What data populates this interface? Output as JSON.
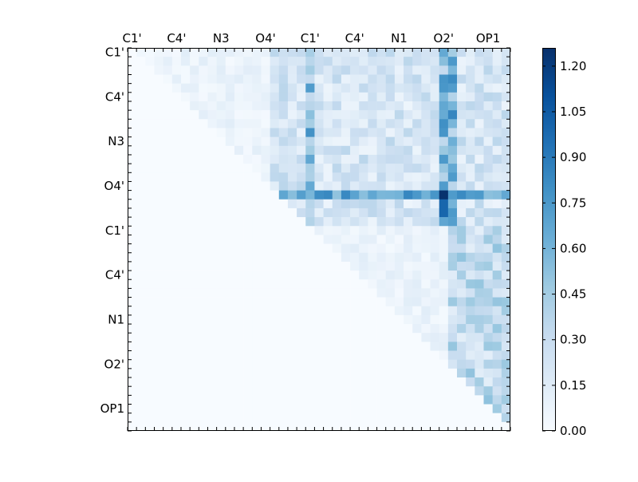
{
  "chart_data": {
    "type": "heatmap",
    "title": "",
    "xlabel": "",
    "ylabel": "",
    "x_tick_labels": [
      "C1'",
      "C4'",
      "N3",
      "O4'",
      "C1'",
      "C4'",
      "N1",
      "O2'",
      "OP1"
    ],
    "y_tick_labels": [
      "C1'",
      "C4'",
      "N3",
      "O4'",
      "C1'",
      "C4'",
      "N1",
      "O2'",
      "OP1"
    ],
    "size": 43,
    "tick_every": 5,
    "x_ticks_position": "top",
    "colormap": "Blues",
    "colors": {
      "low": "#f7fbff",
      "high": "#08306b"
    },
    "vmin": 0.0,
    "vmax": 1.26,
    "colorbar": {
      "position": "right",
      "ticks": [
        "0.00",
        "0.15",
        "0.30",
        "0.45",
        "0.60",
        "0.75",
        "0.90",
        "1.05",
        "1.20"
      ]
    },
    "structure": {
      "upper_triangular": true,
      "strong_row": 16,
      "strong_cols": [
        20,
        35,
        36
      ],
      "bright_cell": [
        16,
        35
      ]
    }
  }
}
